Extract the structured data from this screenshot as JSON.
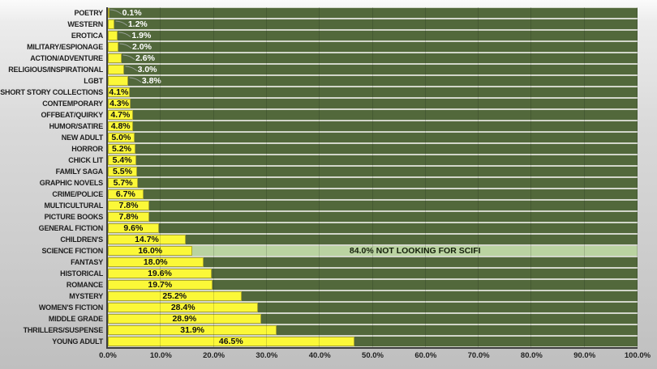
{
  "chart_data": {
    "type": "bar",
    "orientation": "horizontal",
    "title": "",
    "xlabel": "",
    "ylabel": "",
    "xlim": [
      0,
      100
    ],
    "grid": "vertical major every 10%",
    "legend": "none",
    "x_ticks": [
      "0.0%",
      "10.0%",
      "20.0%",
      "30.0%",
      "40.0%",
      "50.0%",
      "60.0%",
      "70.0%",
      "80.0%",
      "90.0%",
      "100.0%"
    ],
    "categories": [
      "POETRY",
      "WESTERN",
      "EROTICA",
      "MILITARY/ESPIONAGE",
      "ACTION/ADVENTURE",
      "RELIGIOUS/INSPIRATIONAL",
      "LGBT",
      "SHORT STORY COLLECTIONS",
      "CONTEMPORARY",
      "OFFBEAT/QUIRKY",
      "HUMOR/SATIRE",
      "NEW ADULT",
      "HORROR",
      "CHICK LIT",
      "FAMILY SAGA",
      "GRAPHIC NOVELS",
      "CRIME/POLICE",
      "MULTICULTURAL",
      "PICTURE BOOKS",
      "GENERAL FICTION",
      "CHILDREN'S",
      "SCIENCE FICTION",
      "FANTASY",
      "HISTORICAL",
      "ROMANCE",
      "MYSTERY",
      "WOMEN'S FICTION",
      "MIDDLE GRADE",
      "THRILLERS/SUSPENSE",
      "YOUNG ADULT"
    ],
    "values": [
      0.1,
      1.2,
      1.9,
      2.0,
      2.6,
      3.0,
      3.8,
      4.1,
      4.3,
      4.7,
      4.8,
      5.0,
      5.2,
      5.4,
      5.5,
      5.7,
      6.7,
      7.8,
      7.8,
      9.6,
      14.7,
      16.0,
      18.0,
      19.6,
      19.7,
      25.2,
      28.4,
      28.9,
      31.9,
      46.5
    ],
    "value_labels": [
      "0.1%",
      "1.2%",
      "1.9%",
      "2.0%",
      "2.6%",
      "3.0%",
      "3.8%",
      "4.1%",
      "4.3%",
      "4.7%",
      "4.8%",
      "5.0%",
      "5.2%",
      "5.4%",
      "5.5%",
      "5.7%",
      "6.7%",
      "7.8%",
      "7.8%",
      "9.6%",
      "14.7%",
      "16.0%",
      "18.0%",
      "19.6%",
      "19.7%",
      "25.2%",
      "28.4%",
      "28.9%",
      "31.9%",
      "46.5%"
    ],
    "outside_label_threshold": 4.0,
    "annotation": {
      "category": "SCIENCE FICTION",
      "label": "84.0% NOT LOOKING FOR SCIFI",
      "span_start": 16.0,
      "span_end": 100.0
    },
    "colors": {
      "bar_fill": "#fbf838",
      "remainder_fill": "#52683b",
      "highlight_fill": "#bad3a1",
      "inside_label": "#101010",
      "outside_label": "#ffffff",
      "axis_line": "#3d3d3d",
      "leader_line": "#97a096"
    }
  }
}
